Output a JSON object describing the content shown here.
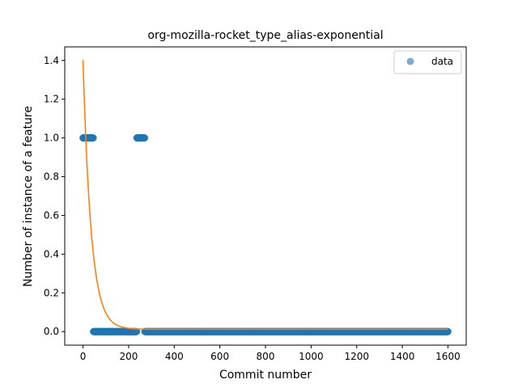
{
  "chart_data": {
    "type": "scatter",
    "title": "org-mozilla-rocket_type_alias-exponential",
    "xlabel": "Commit number",
    "ylabel": "Number of instance of a feature",
    "xlim": [
      -80,
      1680
    ],
    "ylim": [
      -0.07,
      1.47
    ],
    "xticks": [
      0,
      200,
      400,
      600,
      800,
      1000,
      1200,
      1400,
      1600
    ],
    "yticks": [
      0.0,
      0.2,
      0.4,
      0.6,
      0.8,
      1.0,
      1.2,
      1.4
    ],
    "ytick_labels": [
      "0.0",
      "0.2",
      "0.4",
      "0.6",
      "0.8",
      "1.0",
      "1.2",
      "1.4"
    ],
    "grid": false,
    "legend_position": "top-right",
    "colors": {
      "data": "#1f77b4",
      "fit": "#ff7f0e"
    },
    "series": [
      {
        "name": "data",
        "kind": "scatter",
        "segments": [
          {
            "x_start": 0,
            "x_end": 45,
            "step": 1,
            "y": 1
          },
          {
            "x_start": 46,
            "x_end": 235,
            "step": 1,
            "y": 0
          },
          {
            "x_start": 236,
            "x_end": 270,
            "step": 1,
            "y": 1
          },
          {
            "x_start": 271,
            "x_end": 1600,
            "step": 1,
            "y": 0
          }
        ]
      },
      {
        "kind": "line",
        "function": "exponential",
        "a": 1.39,
        "b": 0.028,
        "c": 0.012,
        "x_start": 0,
        "x_end": 1600
      }
    ]
  }
}
